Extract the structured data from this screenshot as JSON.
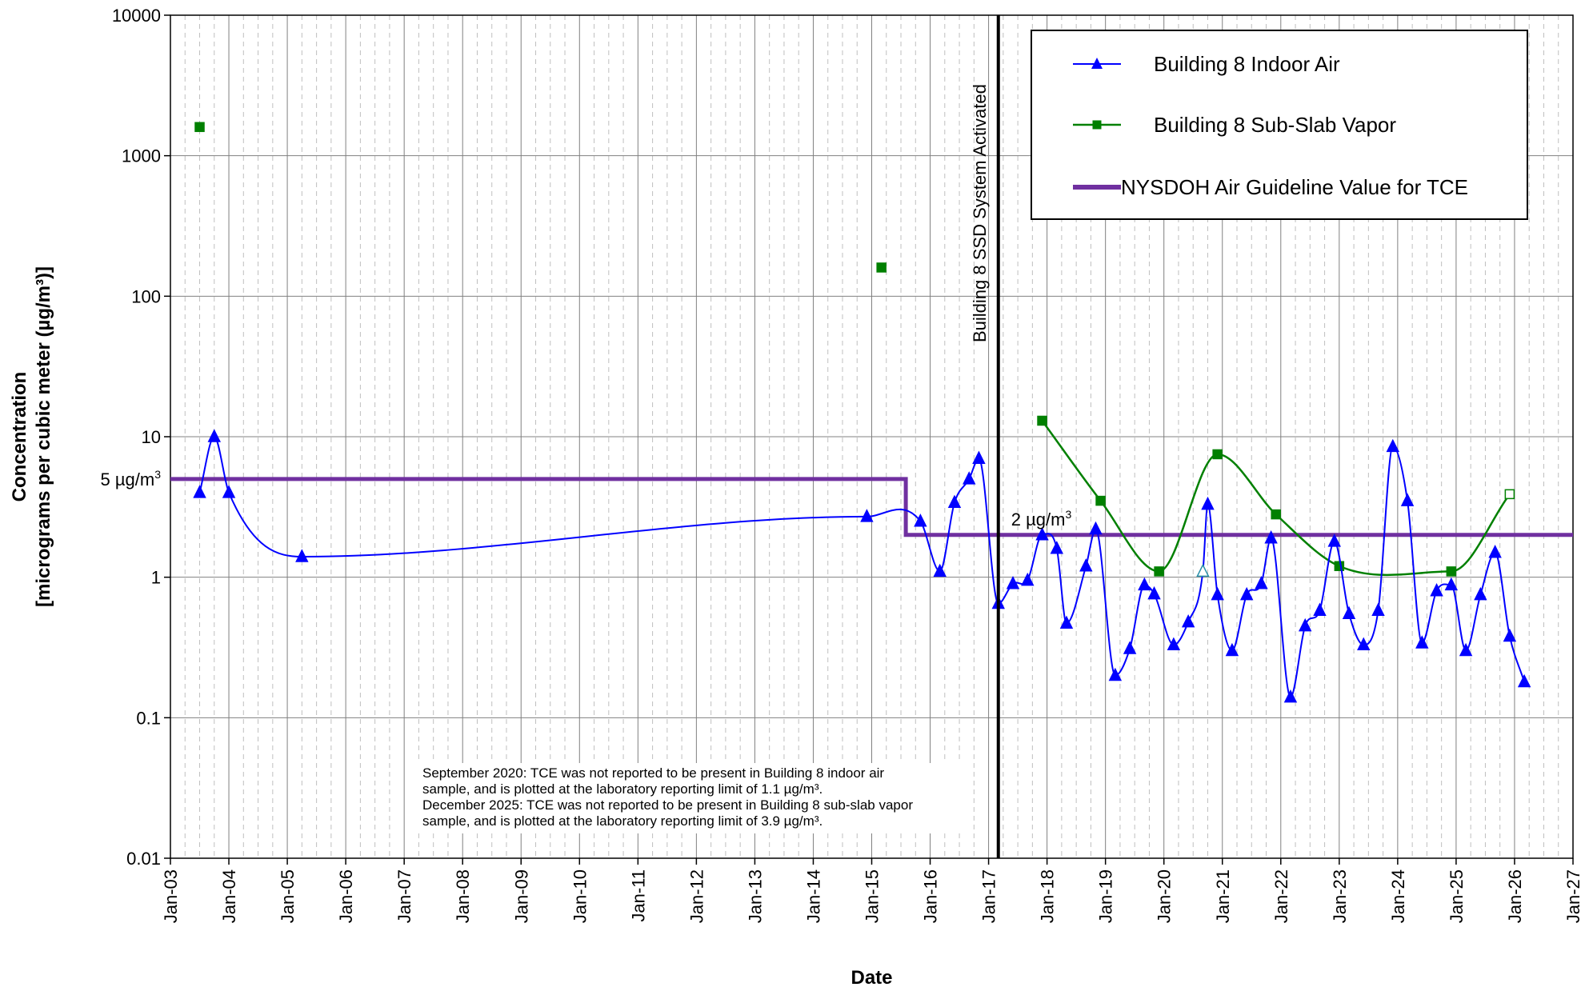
{
  "chart_data": {
    "type": "line",
    "xlabel": "Date",
    "ylabel_line1": "Concentration",
    "ylabel_line2": "[micrograms per cubic meter (µg/m³)]",
    "yscale": "log",
    "ylim": [
      0.01,
      10000
    ],
    "xlim": [
      "2003-01",
      "2027-01"
    ],
    "grid": true,
    "legend_position": "top-right",
    "x_tick_labels": [
      "Jan-03",
      "Jan-04",
      "Jan-05",
      "Jan-06",
      "Jan-07",
      "Jan-08",
      "Jan-09",
      "Jan-10",
      "Jan-11",
      "Jan-12",
      "Jan-13",
      "Jan-14",
      "Jan-15",
      "Jan-16",
      "Jan-17",
      "Jan-18",
      "Jan-19",
      "Jan-20",
      "Jan-21",
      "Jan-22",
      "Jan-23",
      "Jan-24",
      "Jan-25",
      "Jan-26",
      "Jan-27"
    ],
    "y_tick_labels": [
      "10000",
      "1000",
      "100",
      "10",
      "1",
      "0.1",
      "0.01"
    ],
    "y_tick_values": [
      10000,
      1000,
      100,
      10,
      1,
      0.1,
      0.01
    ],
    "series": [
      {
        "name": "Building 8 Indoor Air",
        "color": "#0000ff",
        "marker": "triangle",
        "points": [
          {
            "x": "2003-07",
            "y": 4.0
          },
          {
            "x": "2003-10",
            "y": 10.0
          },
          {
            "x": "2004-01",
            "y": 4.0
          },
          {
            "x": "2005-04",
            "y": 1.4
          },
          {
            "x": "2014-12",
            "y": 2.7
          },
          {
            "x": "2015-11",
            "y": 2.5
          },
          {
            "x": "2016-03",
            "y": 1.1
          },
          {
            "x": "2016-06",
            "y": 3.4
          },
          {
            "x": "2016-09",
            "y": 5.0
          },
          {
            "x": "2016-11",
            "y": 7.0
          },
          {
            "x": "2017-03",
            "y": 0.65
          },
          {
            "x": "2017-06",
            "y": 0.9
          },
          {
            "x": "2017-09",
            "y": 0.95
          },
          {
            "x": "2017-12",
            "y": 2.0
          },
          {
            "x": "2018-03",
            "y": 1.6
          },
          {
            "x": "2018-05",
            "y": 0.47
          },
          {
            "x": "2018-09",
            "y": 1.2
          },
          {
            "x": "2018-11",
            "y": 2.2
          },
          {
            "x": "2019-03",
            "y": 0.2
          },
          {
            "x": "2019-06",
            "y": 0.31
          },
          {
            "x": "2019-09",
            "y": 0.88
          },
          {
            "x": "2019-11",
            "y": 0.76
          },
          {
            "x": "2020-03",
            "y": 0.33
          },
          {
            "x": "2020-06",
            "y": 0.48
          },
          {
            "x": "2020-09",
            "y": 1.1,
            "hollow": true
          },
          {
            "x": "2020-10",
            "y": 3.3
          },
          {
            "x": "2020-12",
            "y": 0.75
          },
          {
            "x": "2021-03",
            "y": 0.3
          },
          {
            "x": "2021-06",
            "y": 0.75
          },
          {
            "x": "2021-09",
            "y": 0.9
          },
          {
            "x": "2021-11",
            "y": 1.9
          },
          {
            "x": "2022-03",
            "y": 0.14
          },
          {
            "x": "2022-06",
            "y": 0.45
          },
          {
            "x": "2022-09",
            "y": 0.58
          },
          {
            "x": "2022-12",
            "y": 1.8
          },
          {
            "x": "2023-03",
            "y": 0.55
          },
          {
            "x": "2023-06",
            "y": 0.33
          },
          {
            "x": "2023-09",
            "y": 0.58
          },
          {
            "x": "2023-12",
            "y": 8.5
          },
          {
            "x": "2024-03",
            "y": 3.5
          },
          {
            "x": "2024-06",
            "y": 0.34
          },
          {
            "x": "2024-09",
            "y": 0.8
          },
          {
            "x": "2024-12",
            "y": 0.88
          },
          {
            "x": "2025-03",
            "y": 0.3
          },
          {
            "x": "2025-06",
            "y": 0.75
          },
          {
            "x": "2025-09",
            "y": 1.5
          },
          {
            "x": "2025-12",
            "y": 0.38
          },
          {
            "x": "2026-03",
            "y": 0.18
          }
        ]
      },
      {
        "name": "Building 8 Sub-Slab Vapor",
        "color": "#008000",
        "marker": "square",
        "points": [
          {
            "x": "2003-07",
            "y": 1600,
            "isolated": true
          },
          {
            "x": "2015-03",
            "y": 160,
            "isolated": true
          },
          {
            "x": "2017-12",
            "y": 13
          },
          {
            "x": "2018-12",
            "y": 3.5
          },
          {
            "x": "2019-12",
            "y": 1.1
          },
          {
            "x": "2020-12",
            "y": 7.5
          },
          {
            "x": "2021-12",
            "y": 2.8
          },
          {
            "x": "2023-01",
            "y": 1.2
          },
          {
            "x": "2024-12",
            "y": 1.1
          },
          {
            "x": "2025-12",
            "y": 3.9,
            "hollow": true
          }
        ]
      },
      {
        "name": "NYSDOH Air Guideline Value for TCE",
        "color": "#7030a0",
        "marker": "none",
        "steps": [
          {
            "x_start": "2003-01",
            "x_end": "2015-08",
            "y": 5
          },
          {
            "x_start": "2015-08",
            "x_end": "2027-01",
            "y": 2
          }
        ]
      }
    ],
    "annotations": {
      "guideline_5": "5 µg/m",
      "guideline_5_sup": "3",
      "guideline_2": "2 µg/m",
      "guideline_2_sup": "3",
      "ssd_activation_label": "Building 8 SSD System Activated",
      "ssd_activation_x": "2017-03"
    },
    "note_lines": [
      "September 2020: TCE was not reported to be present in Building 8 indoor air",
      "sample, and is plotted at the laboratory reporting limit of 1.1 µg/m³.",
      "December 2025: TCE was not reported to be present in Building 8 sub-slab vapor",
      "sample, and is plotted at the laboratory reporting limit of 3.9 µg/m³."
    ]
  }
}
